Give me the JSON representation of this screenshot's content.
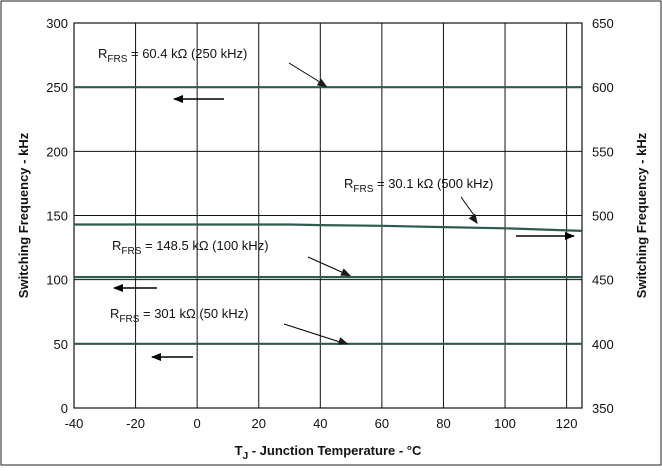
{
  "chart_data": {
    "type": "line",
    "xlabel": "T_J - Junction Temperature - °C",
    "xlabel_parts": {
      "main": "T",
      "sub": "J",
      "rest": " - Junction Temperature - °C"
    },
    "ylabel_left": "Switching Frequency - kHz",
    "ylabel_right": "Switching Frequency - kHz",
    "xlim": [
      -40,
      125
    ],
    "ylim_left": [
      0,
      300
    ],
    "ylim_right": [
      350,
      650
    ],
    "x_ticks": [
      -40,
      -20,
      0,
      20,
      40,
      60,
      80,
      100,
      120
    ],
    "y_ticks_left": [
      0,
      50,
      100,
      150,
      200,
      250,
      300
    ],
    "y_ticks_right": [
      350,
      400,
      450,
      500,
      550,
      600,
      650
    ],
    "grid": true,
    "series": [
      {
        "label": "R_FRS = 60.4 kΩ (250 kHz)",
        "label_parts": {
          "pre": "R",
          "sub": "FRS",
          "post": " = 60.4 kΩ (250 kHz)"
        },
        "axis": "left",
        "x": [
          -40,
          125
        ],
        "y": [
          250,
          250
        ]
      },
      {
        "label": "R_FRS = 30.1 kΩ (500 kHz)",
        "label_parts": {
          "pre": "R",
          "sub": "FRS",
          "post": " = 30.1 kΩ (500 kHz)"
        },
        "axis": "right",
        "x": [
          -40,
          0,
          30,
          40,
          60,
          80,
          100,
          125
        ],
        "y": [
          493,
          493,
          493,
          492.5,
          492,
          491,
          490,
          488
        ]
      },
      {
        "label": "R_FRS = 148.5 kΩ (100 kHz)",
        "label_parts": {
          "pre": "R",
          "sub": "FRS",
          "post": " = 148.5 kΩ (100 kHz)"
        },
        "axis": "left",
        "x": [
          -40,
          125
        ],
        "y": [
          102,
          102
        ]
      },
      {
        "label": "R_FRS = 301 kΩ (50 kHz)",
        "label_parts": {
          "pre": "R",
          "sub": "FRS",
          "post": " = 301 kΩ (50 kHz)"
        },
        "axis": "left",
        "x": [
          -40,
          125
        ],
        "y": [
          50,
          50
        ]
      }
    ],
    "colors": {
      "series": "#2f5a50",
      "grid": "#111111",
      "frame": "#111111",
      "arrow": "#000000"
    }
  }
}
